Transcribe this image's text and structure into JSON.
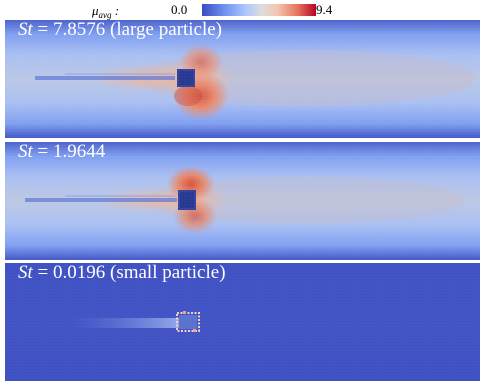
{
  "colorbar": {
    "label_main": "μ",
    "label_sub": "avg",
    "label_suffix": " :",
    "min": "0.0",
    "max": "9.4"
  },
  "colors": {
    "low": "#3b4cc0",
    "mid": "#dddddd",
    "high": "#b40426"
  },
  "panels": [
    {
      "st_symbol": "St",
      "label_rest": " = 7.8576 (large particle)",
      "St": 7.8576
    },
    {
      "st_symbol": "St",
      "label_rest": " = 1.9644",
      "St": 1.9644
    },
    {
      "st_symbol": "St",
      "label_rest": " = 0.0196 (small particle)",
      "St": 0.0196
    }
  ]
}
